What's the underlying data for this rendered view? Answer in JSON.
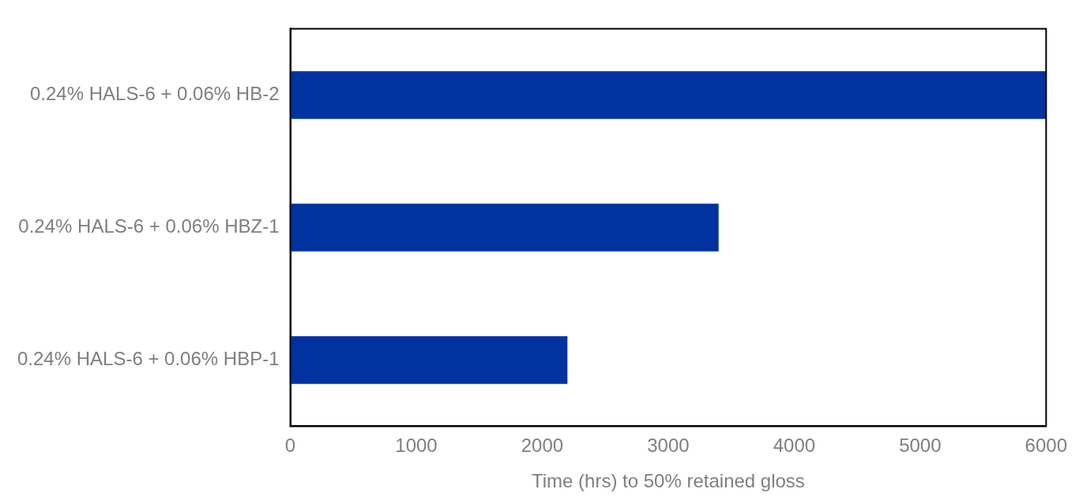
{
  "chart_data": {
    "type": "bar",
    "orientation": "horizontal",
    "categories": [
      "0.24% HALS-6 + 0.06% HB-2",
      "0.24% HALS-6 + 0.06% HBZ-1",
      "0.24% HALS-6 + 0.06% HBP-1"
    ],
    "values": [
      6000,
      3400,
      2200
    ],
    "color": "#0033a0",
    "xlabel": "Time (hrs) to 50% retained gloss",
    "xlim": [
      0,
      6000
    ],
    "xticks": [
      0,
      1000,
      2000,
      3000,
      4000,
      5000,
      6000
    ],
    "grid": false,
    "legend": false
  }
}
